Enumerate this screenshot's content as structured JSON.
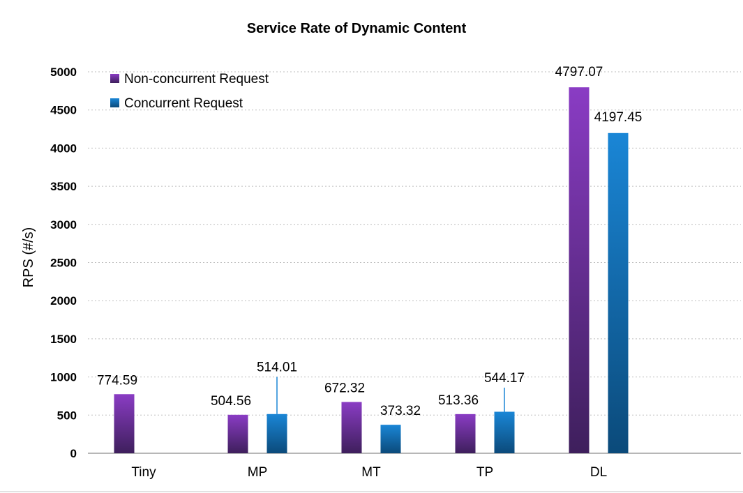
{
  "chart_data": {
    "type": "bar",
    "title": "Service Rate of Dynamic Content",
    "ylabel": "RPS (#/s)",
    "xlabel": "",
    "ylim": [
      0,
      5000
    ],
    "yticks": [
      0,
      500,
      1000,
      1500,
      2000,
      2500,
      3000,
      3500,
      4000,
      4500,
      5000
    ],
    "grid": true,
    "legend_position": "top-left",
    "categories": [
      "Tiny",
      "MP",
      "MT",
      "TP",
      "DL"
    ],
    "series": [
      {
        "name": "Non-concurrent Request",
        "color_top": "#8a3cc4",
        "color_bottom": "#3e1f5c",
        "values": [
          774.59,
          504.56,
          672.32,
          513.36,
          4797.07
        ],
        "labels": [
          "774.59",
          "504.56",
          "672.32",
          "513.36",
          "4797.07"
        ]
      },
      {
        "name": "Concurrent Request",
        "color_top": "#1a86d6",
        "color_bottom": "#0b4a7a",
        "values": [
          null,
          514.01,
          373.32,
          544.17,
          4197.45
        ],
        "labels": [
          "",
          "514.01",
          "373.32",
          "544.17",
          "4197.45"
        ],
        "error_upper": [
          null,
          1000,
          null,
          860,
          null
        ]
      }
    ]
  }
}
